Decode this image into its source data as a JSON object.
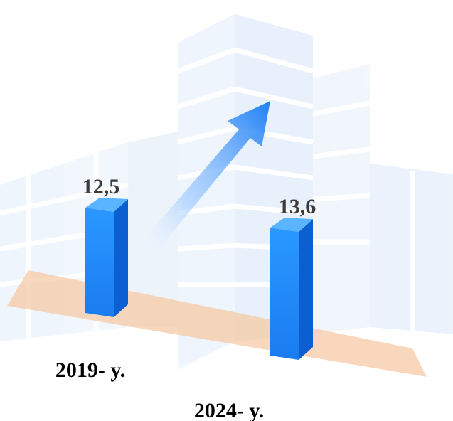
{
  "chart_data": {
    "type": "bar",
    "categories": [
      "2019- y.",
      "2024- y."
    ],
    "values": [
      12.5,
      13.6
    ],
    "value_labels": [
      "12,5",
      "13,6"
    ],
    "title": "",
    "xlabel": "",
    "ylabel": "",
    "grid": false,
    "legend": "none",
    "trend_arrow": "up-right"
  },
  "colors": {
    "bar_front": "#1e8fff",
    "bar_side": "#0b5fd0",
    "bar_top": "#5ab4ff",
    "floor": "#f6c9a6",
    "background_art": "#e8f1fb",
    "arrow": "#2b8cff"
  }
}
